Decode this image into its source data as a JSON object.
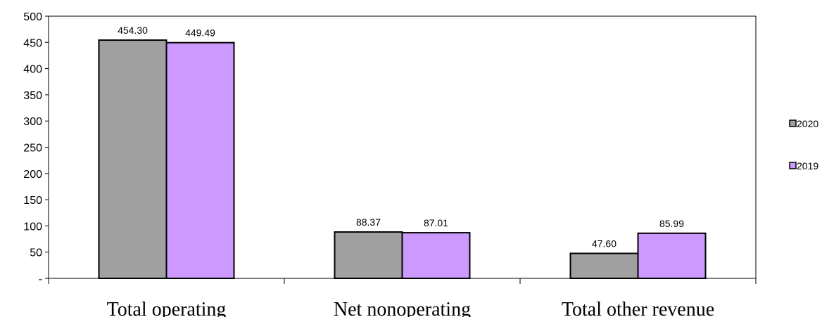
{
  "chart_data": {
    "type": "bar",
    "categories": [
      "Total operating",
      "Net nonoperating",
      "Total other revenue"
    ],
    "series": [
      {
        "name": "2020",
        "values": [
          454.3,
          88.37,
          47.6
        ],
        "labels": [
          "454.30",
          "88.37",
          "47.60"
        ],
        "color": "#a0a0a0"
      },
      {
        "name": "2019",
        "values": [
          449.49,
          87.01,
          85.99
        ],
        "labels": [
          "449.49",
          "87.01",
          "85.99"
        ],
        "color": "#cc99ff"
      }
    ],
    "yticks": [
      {
        "value": 0,
        "label": "-"
      },
      {
        "value": 50,
        "label": "50"
      },
      {
        "value": 100,
        "label": "100"
      },
      {
        "value": 150,
        "label": "150"
      },
      {
        "value": 200,
        "label": "200"
      },
      {
        "value": 250,
        "label": "250"
      },
      {
        "value": 300,
        "label": "300"
      },
      {
        "value": 350,
        "label": "350"
      },
      {
        "value": 400,
        "label": "400"
      },
      {
        "value": 450,
        "label": "450"
      },
      {
        "value": 500,
        "label": "500"
      }
    ],
    "ylim": [
      0,
      500
    ],
    "grid": false,
    "legend": "right"
  }
}
